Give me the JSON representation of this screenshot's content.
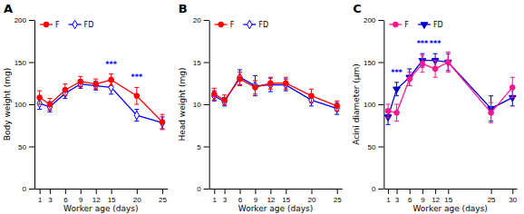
{
  "chart_data": [
    {
      "type": "line",
      "title": "A",
      "xlabel": "Worker age  (days)",
      "ylabel": "Body weight (mg)",
      "x": [
        1,
        3,
        6,
        9,
        12,
        15,
        20,
        25
      ],
      "xlim": [
        0,
        26
      ],
      "xticks": [
        1,
        3,
        6,
        9,
        12,
        15,
        20,
        25
      ],
      "ylim": [
        0,
        200
      ],
      "yticks": [
        0,
        50,
        100,
        150,
        200
      ],
      "legend": "upper left",
      "series": [
        {
          "name": "F",
          "color": "#FF0000",
          "marker": "circle",
          "values": [
            108,
            100,
            117,
            127,
            124,
            129,
            110,
            79
          ],
          "errors": [
            8,
            7,
            7,
            6,
            6,
            7,
            10,
            9
          ]
        },
        {
          "name": "FD",
          "color": "#0000FF",
          "marker": "diamond-open",
          "values": [
            101,
            97,
            113,
            124,
            122,
            120,
            87,
            78
          ],
          "errors": [
            7,
            6,
            6,
            5,
            5,
            8,
            7,
            7
          ]
        }
      ],
      "annotations": [
        {
          "text": "***",
          "x": 15,
          "y": 143
        },
        {
          "text": "***",
          "x": 20,
          "y": 128
        }
      ]
    },
    {
      "type": "line",
      "title": "B",
      "xlabel": "Worker age  (days)",
      "ylabel": "Head weight (mg)",
      "x": [
        1,
        3,
        6,
        9,
        12,
        15,
        20,
        25
      ],
      "xlim": [
        0,
        26
      ],
      "xticks": [
        1,
        3,
        6,
        9,
        12,
        15,
        20,
        25
      ],
      "ylim": [
        0,
        20
      ],
      "yticks": [
        0,
        5,
        10,
        15,
        20
      ],
      "legend": "upper left",
      "series": [
        {
          "name": "F",
          "color": "#FF0000",
          "marker": "circle",
          "values": [
            11.2,
            10.5,
            13.0,
            12.0,
            12.5,
            12.5,
            11.0,
            9.8
          ],
          "errors": [
            0.7,
            0.6,
            0.8,
            0.8,
            0.7,
            0.7,
            0.8,
            0.6
          ]
        },
        {
          "name": "FD",
          "color": "#0000FF",
          "marker": "diamond-open",
          "values": [
            11.0,
            10.3,
            13.2,
            12.2,
            12.3,
            12.3,
            10.5,
            9.5
          ],
          "errors": [
            0.6,
            0.5,
            0.9,
            1.2,
            0.8,
            0.7,
            0.7,
            0.7
          ]
        }
      ]
    },
    {
      "type": "line",
      "title": "C",
      "xlabel": "Worker age (days)",
      "ylabel": "Acini diameter (µm)",
      "x": [
        1,
        3,
        6,
        9,
        12,
        15,
        25,
        30
      ],
      "xlim": [
        0,
        31
      ],
      "xticks": [
        1,
        3,
        6,
        9,
        12,
        15,
        25,
        30
      ],
      "ylim": [
        0,
        200
      ],
      "yticks": [
        0,
        50,
        100,
        150,
        200
      ],
      "legend": "upper left",
      "series": [
        {
          "name": "F",
          "color": "#FF1493",
          "marker": "circle",
          "values": [
            92,
            90,
            130,
            148,
            142,
            150,
            90,
            120
          ],
          "errors": [
            8,
            10,
            8,
            10,
            10,
            12,
            12,
            12
          ]
        },
        {
          "name": "FD",
          "color": "#0000CD",
          "marker": "triangle-down",
          "values": [
            85,
            118,
            132,
            152,
            152,
            150,
            95,
            108
          ],
          "errors": [
            9,
            8,
            10,
            8,
            8,
            10,
            15,
            10
          ]
        }
      ],
      "annotations": [
        {
          "text": "***",
          "x": 3,
          "y": 133
        },
        {
          "text": "***",
          "x": 9,
          "y": 168
        },
        {
          "text": "***",
          "x": 12,
          "y": 168
        }
      ]
    }
  ]
}
